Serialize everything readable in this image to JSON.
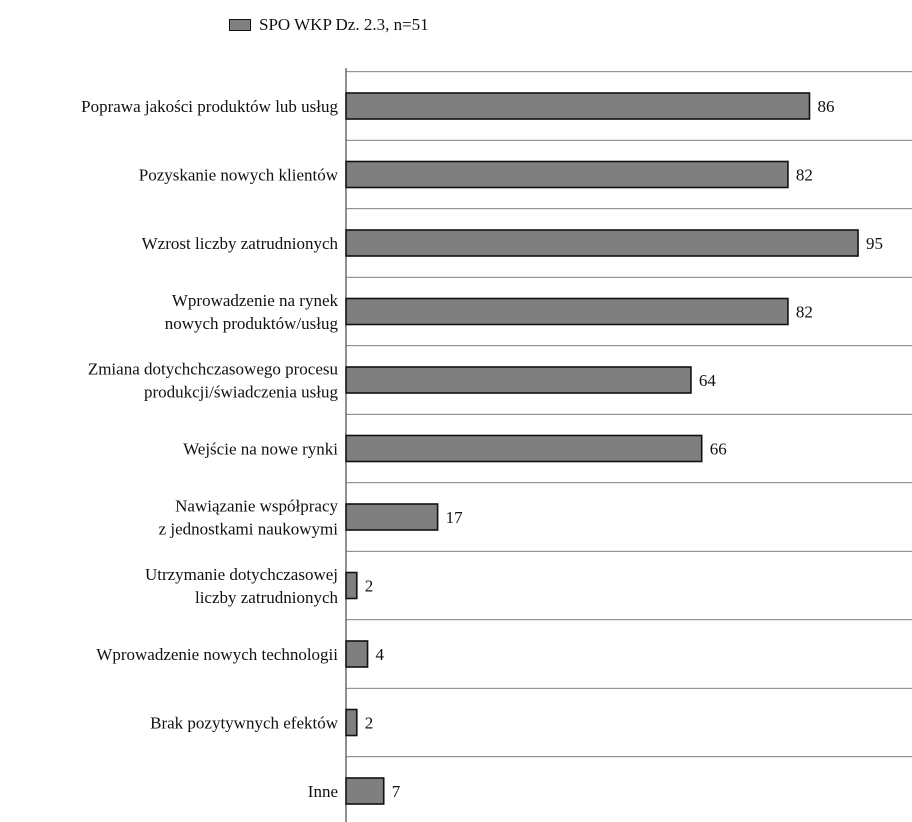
{
  "chart_data": {
    "type": "bar",
    "orientation": "horizontal",
    "legend_position": "top-left",
    "grid": false,
    "xlim": [
      0,
      95
    ],
    "series": [
      {
        "name": "SPO WKP Dz. 2.3, n=51",
        "color": "#7f7f7f",
        "values": [
          86,
          82,
          95,
          82,
          64,
          66,
          17,
          2,
          4,
          2,
          7
        ]
      }
    ],
    "categories": [
      [
        "Poprawa jakości produktów lub usług"
      ],
      [
        "Pozyskanie nowych klientów"
      ],
      [
        "Wzrost liczby zatrudnionych"
      ],
      [
        "Wprowadzenie na rynek",
        "nowych produktów/usług"
      ],
      [
        "Zmiana dotychchczasowego procesu",
        "produkcji/świadczenia usług"
      ],
      [
        "Wejście na nowe rynki"
      ],
      [
        "Nawiązanie współpracy",
        "z jednostkami naukowymi"
      ],
      [
        "Utrzymanie dotychczasowej",
        "liczby zatrudnionych"
      ],
      [
        "Wprowadzenie nowych technologii"
      ],
      [
        "Brak pozytywnych efektów"
      ],
      [
        "Inne"
      ]
    ]
  }
}
